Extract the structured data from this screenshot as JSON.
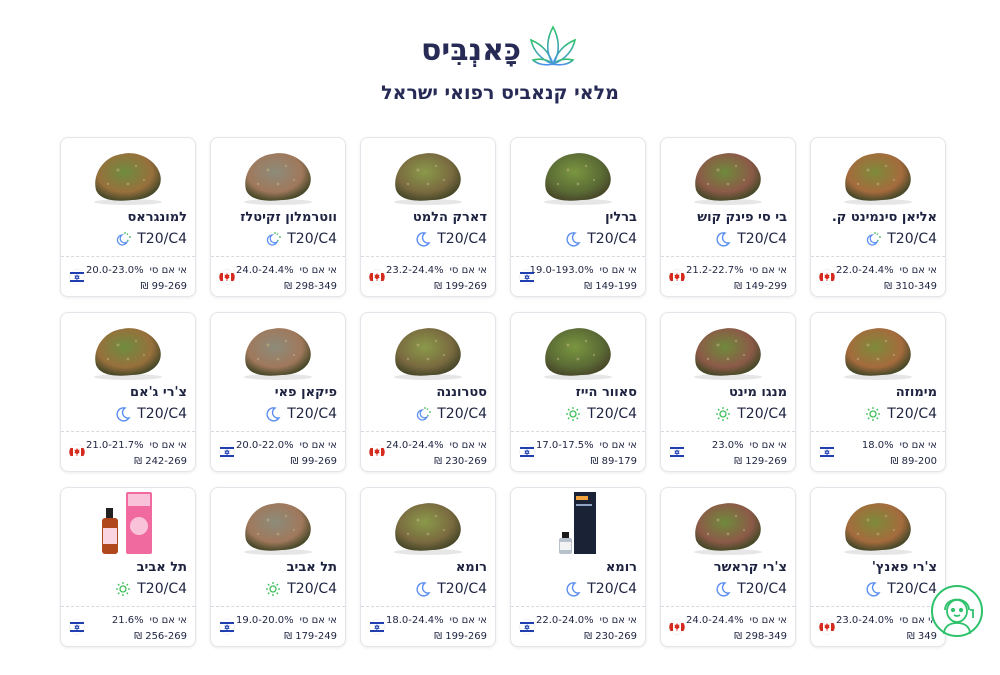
{
  "header": {
    "logo_text": "כָּאנְבִּיס",
    "subtitle": "מלאי קנאביס רפואי ישראל"
  },
  "labels": {
    "thc": "אי אם סי",
    "currency": "₪"
  },
  "colors": {
    "indica": "#5b8ef0",
    "sativa": "#3fbf5a",
    "accent": "#1e2a5a"
  },
  "products": [
    {
      "name": "אליאן סינמינט ק.",
      "type": "T20/C4",
      "strain": "hybrid",
      "thc": "22.0-24.4%",
      "price": "310-349",
      "origin": "canada",
      "image": "bud"
    },
    {
      "name": "בי סי פינק קוש",
      "type": "T20/C4",
      "strain": "indica",
      "thc": "21.2-22.7%",
      "price": "149-299",
      "origin": "canada",
      "image": "bud"
    },
    {
      "name": "ברלין",
      "type": "T20/C4",
      "strain": "indica",
      "thc": "19.0-193.0%",
      "price": "149-199",
      "origin": "israel",
      "image": "bud"
    },
    {
      "name": "דארק הלמט",
      "type": "T20/C4",
      "strain": "indica",
      "thc": "23.2-24.4%",
      "price": "199-269",
      "origin": "canada",
      "image": "bud"
    },
    {
      "name": "ווטרמלון זקיטלז",
      "type": "T20/C4",
      "strain": "hybrid",
      "thc": "24.0-24.4%",
      "price": "298-349",
      "origin": "canada",
      "image": "bud"
    },
    {
      "name": "למונגראס",
      "type": "T20/C4",
      "strain": "hybrid",
      "thc": "20.0-23.0%",
      "price": "99-269",
      "origin": "israel",
      "image": "bud"
    },
    {
      "name": "מימוזה",
      "type": "T20/C4",
      "strain": "sativa",
      "thc": "18.0%",
      "price": "89-200",
      "origin": "israel",
      "image": "bud"
    },
    {
      "name": "מנגו מינט",
      "type": "T20/C4",
      "strain": "sativa",
      "thc": "23.0%",
      "price": "129-269",
      "origin": "israel",
      "image": "bud"
    },
    {
      "name": "סאוור הייז",
      "type": "T20/C4",
      "strain": "sativa",
      "thc": "17.0-17.5%",
      "price": "89-179",
      "origin": "israel",
      "image": "bud"
    },
    {
      "name": "סטרוננה",
      "type": "T20/C4",
      "strain": "hybrid",
      "thc": "24.0-24.4%",
      "price": "230-269",
      "origin": "canada",
      "image": "bud"
    },
    {
      "name": "פיקאן פאי",
      "type": "T20/C4",
      "strain": "indica",
      "thc": "20.0-22.0%",
      "price": "99-269",
      "origin": "israel",
      "image": "bud"
    },
    {
      "name": "צ'רי ג'אם",
      "type": "T20/C4",
      "strain": "indica",
      "thc": "21.0-21.7%",
      "price": "242-269",
      "origin": "canada",
      "image": "bud"
    },
    {
      "name": "צ'רי פאנץ'",
      "type": "T20/C4",
      "strain": "indica",
      "thc": "23.0-24.0%",
      "price": "349",
      "origin": "canada",
      "image": "bud"
    },
    {
      "name": "צ'רי קראשר",
      "type": "T20/C4",
      "strain": "indica",
      "thc": "24.0-24.4%",
      "price": "298-349",
      "origin": "canada",
      "image": "bud"
    },
    {
      "name": "רומא",
      "type": "T20/C4",
      "strain": "indica",
      "thc": "22.0-24.0%",
      "price": "230-269",
      "origin": "israel",
      "image": "oil-dark"
    },
    {
      "name": "רומא",
      "type": "T20/C4",
      "strain": "indica",
      "thc": "18.0-24.4%",
      "price": "199-269",
      "origin": "israel",
      "image": "bud"
    },
    {
      "name": "תל אביב",
      "type": "T20/C4",
      "strain": "sativa",
      "thc": "19.0-20.0%",
      "price": "179-249",
      "origin": "israel",
      "image": "bud"
    },
    {
      "name": "תל אביב",
      "type": "T20/C4",
      "strain": "sativa",
      "thc": "21.6%",
      "price": "256-269",
      "origin": "israel",
      "image": "oil-pink"
    }
  ]
}
